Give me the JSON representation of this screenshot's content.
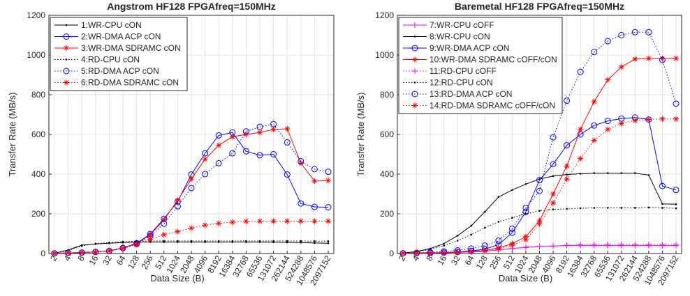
{
  "chart_data": [
    {
      "type": "line",
      "title": "Angstrom HF128 FPGAfreq=150MHz",
      "xlabel": "Data Size (B)",
      "ylabel": "Transfer Rate (MB/s)",
      "ylim": [
        0,
        1200
      ],
      "yticks": [
        0,
        200,
        400,
        600,
        800,
        1000,
        1200
      ],
      "grid": true,
      "legend_position": "top-left",
      "categories": [
        "2",
        "4",
        "8",
        "16",
        "32",
        "64",
        "128",
        "256",
        "512",
        "1024",
        "2048",
        "4096",
        "8192",
        "16384",
        "32768",
        "65536",
        "131072",
        "262144",
        "524288",
        "1048576",
        "2097152"
      ],
      "series": [
        {
          "name": "1:WR-CPU cON",
          "color": "#000000",
          "dash": "solid",
          "marker": "dot",
          "values": [
            1,
            18,
            42,
            48,
            52,
            55,
            58,
            58,
            58,
            58,
            58,
            58,
            58,
            58,
            58,
            58,
            57,
            56,
            55,
            53,
            52
          ]
        },
        {
          "name": "2:WR-DMA ACP cON",
          "color": "#0000ff",
          "dash": "solid",
          "marker": "circle",
          "values": [
            1,
            3,
            5,
            8,
            13,
            28,
            52,
            98,
            175,
            262,
            398,
            505,
            595,
            610,
            515,
            495,
            500,
            398,
            252,
            235,
            233
          ]
        },
        {
          "name": "3:WR-DMA SDRAMC cON",
          "color": "#ff0000",
          "dash": "solid",
          "marker": "star",
          "values": [
            1,
            3,
            5,
            8,
            13,
            28,
            50,
            95,
            170,
            268,
            375,
            475,
            545,
            588,
            600,
            610,
            625,
            628,
            455,
            365,
            368
          ]
        },
        {
          "name": "4:RD-CPU cON",
          "color": "#000000",
          "dash": "dotted",
          "marker": "dot",
          "values": [
            1,
            15,
            38,
            50,
            55,
            60,
            62,
            63,
            63,
            63,
            63,
            63,
            63,
            63,
            63,
            63,
            63,
            63,
            63,
            62,
            62
          ]
        },
        {
          "name": "5:RD-DMA ACP cON",
          "color": "#0000ff",
          "dash": "dotted",
          "marker": "circle",
          "values": [
            1,
            3,
            5,
            8,
            13,
            27,
            48,
            88,
            150,
            238,
            330,
            400,
            455,
            505,
            615,
            638,
            652,
            560,
            465,
            425,
            412
          ]
        },
        {
          "name": "6:RD-DMA SDRAMC cON",
          "color": "#ff0000",
          "dash": "dotted",
          "marker": "star",
          "values": [
            1,
            3,
            5,
            8,
            13,
            25,
            45,
            72,
            95,
            110,
            128,
            143,
            152,
            158,
            162,
            163,
            163,
            163,
            163,
            163,
            163
          ]
        }
      ]
    },
    {
      "type": "line",
      "title": "Baremetal HF128 FPGAfreq=150MHz",
      "xlabel": "Data Size (B)",
      "ylabel": "Transfer Rate (MB/s)",
      "ylim": [
        0,
        1200
      ],
      "yticks": [
        0,
        200,
        400,
        600,
        800,
        1000,
        1200
      ],
      "grid": true,
      "legend_position": "top-left",
      "categories": [
        "2",
        "4",
        "8",
        "16",
        "32",
        "64",
        "128",
        "256",
        "512",
        "1024",
        "2048",
        "4096",
        "8192",
        "16384",
        "32768",
        "65536",
        "131072",
        "262144",
        "524288",
        "1048576",
        "2097152"
      ],
      "series": [
        {
          "name": "7:WR-CPU cOFF",
          "color": "#ff00ff",
          "dash": "solid",
          "marker": "plus",
          "values": [
            1,
            2,
            3,
            4,
            6,
            8,
            12,
            18,
            25,
            32,
            36,
            38,
            40,
            40,
            40,
            40,
            40,
            40,
            40,
            40,
            40
          ]
        },
        {
          "name": "8:WR-CPU cON",
          "color": "#000000",
          "dash": "solid",
          "marker": "dot",
          "values": [
            2,
            10,
            25,
            50,
            90,
            140,
            210,
            285,
            320,
            350,
            375,
            390,
            398,
            402,
            405,
            405,
            405,
            405,
            395,
            250,
            248
          ]
        },
        {
          "name": "9:WR-DMA ACP cON",
          "color": "#0000ff",
          "dash": "solid",
          "marker": "circle",
          "values": [
            1,
            2,
            3,
            5,
            8,
            13,
            22,
            45,
            105,
            210,
            370,
            450,
            545,
            600,
            645,
            668,
            680,
            685,
            675,
            340,
            320
          ]
        },
        {
          "name": "10:WR-DMA SDRAMC cOFF/cON",
          "color": "#ff0000",
          "dash": "solid",
          "marker": "star",
          "values": [
            1,
            2,
            3,
            4,
            6,
            10,
            15,
            28,
            50,
            85,
            165,
            300,
            440,
            625,
            765,
            875,
            940,
            980,
            983,
            983,
            983
          ]
        },
        {
          "name": "11:RD-CPU cOFF",
          "color": "#ff00ff",
          "dash": "dotted",
          "marker": "plus",
          "values": [
            1,
            2,
            3,
            4,
            6,
            8,
            12,
            18,
            25,
            30,
            35,
            38,
            42,
            44,
            45,
            45,
            45,
            45,
            45,
            45,
            45
          ]
        },
        {
          "name": "12:RD-CPU cON",
          "color": "#000000",
          "dash": "dotted",
          "marker": "dot",
          "values": [
            2,
            8,
            20,
            40,
            65,
            95,
            130,
            160,
            180,
            200,
            215,
            222,
            225,
            228,
            230,
            230,
            230,
            230,
            232,
            230,
            228
          ]
        },
        {
          "name": "13:RD-DMA ACP cON",
          "color": "#0000ff",
          "dash": "dotted",
          "marker": "circle",
          "values": [
            1,
            3,
            6,
            10,
            16,
            25,
            40,
            65,
            125,
            230,
            315,
            585,
            770,
            915,
            1015,
            1070,
            1100,
            1115,
            1115,
            975,
            755
          ]
        },
        {
          "name": "14:RD-DMA SDRAMC cOFF/cON",
          "color": "#ff0000",
          "dash": "dotted",
          "marker": "star",
          "values": [
            1,
            2,
            3,
            4,
            6,
            10,
            15,
            25,
            42,
            70,
            150,
            255,
            375,
            478,
            570,
            625,
            655,
            670,
            675,
            678,
            678
          ]
        }
      ]
    }
  ]
}
